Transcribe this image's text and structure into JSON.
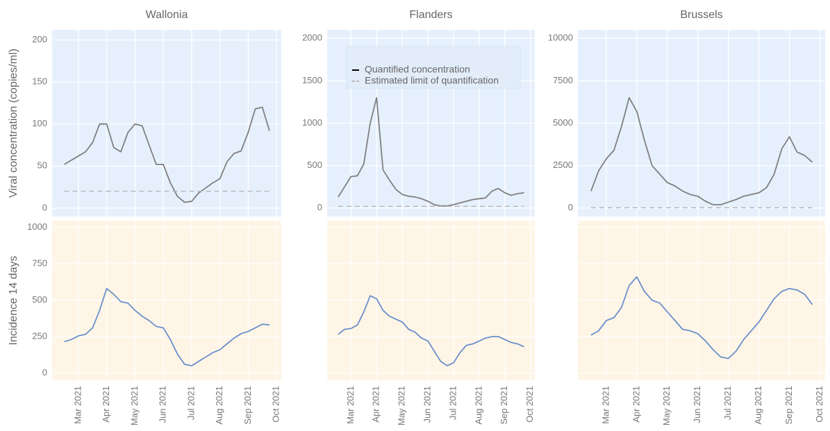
{
  "chart_data": [
    {
      "type": "line",
      "title": "Wallonia",
      "ylabel": "Viral concentration (copies/ml)",
      "background": "#e6f0fd",
      "xlim": [
        2.07,
        10.17
      ],
      "xticks": [
        3,
        4,
        5,
        6,
        7,
        8,
        9,
        10
      ],
      "show_xtick_labels": false,
      "ylim": [
        -10,
        212
      ],
      "yticks": [
        0,
        50,
        100,
        150,
        200
      ],
      "series": [
        {
          "color": "#7f7f7f",
          "x": [
            2.5,
            2.75,
            3.0,
            3.25,
            3.5,
            3.75,
            4.0,
            4.25,
            4.5,
            4.75,
            5.0,
            5.25,
            5.5,
            5.75,
            6.0,
            6.25,
            6.5,
            6.75,
            7.0,
            7.25,
            7.5,
            7.75,
            8.0,
            8.25,
            8.5,
            8.75,
            9.0,
            9.25,
            9.5,
            9.75
          ],
          "values": [
            52,
            57,
            62,
            67,
            78,
            100,
            100,
            72,
            67,
            90,
            100,
            98,
            75,
            52,
            52,
            30,
            14,
            7,
            8,
            18,
            24,
            30,
            35,
            55,
            65,
            68,
            90,
            118,
            120,
            92
          ]
        },
        {
          "color": "#b5b5b5",
          "dash": true,
          "x": [
            2.5,
            9.75
          ],
          "values": [
            20,
            20
          ]
        }
      ]
    },
    {
      "type": "line",
      "title": "Flanders",
      "background": "#e6f0fd",
      "legend": true,
      "xlim": [
        2.07,
        10.17
      ],
      "xticks": [
        3,
        4,
        5,
        6,
        7,
        8,
        9,
        10
      ],
      "show_xtick_labels": false,
      "ylim": [
        -100,
        2100
      ],
      "yticks": [
        0,
        500,
        1000,
        1500,
        2000
      ],
      "series": [
        {
          "name": "Quantified concentration",
          "color": "#7f7f7f",
          "x": [
            2.5,
            2.75,
            3.0,
            3.25,
            3.5,
            3.75,
            4.0,
            4.25,
            4.5,
            4.75,
            5.0,
            5.25,
            5.5,
            5.75,
            6.0,
            6.25,
            6.5,
            6.75,
            7.0,
            7.25,
            7.5,
            7.75,
            8.0,
            8.25,
            8.5,
            8.75,
            9.0,
            9.25,
            9.5,
            9.75
          ],
          "values": [
            130,
            250,
            370,
            380,
            520,
            1000,
            1300,
            450,
            330,
            220,
            160,
            140,
            130,
            110,
            80,
            40,
            25,
            25,
            40,
            60,
            80,
            100,
            110,
            120,
            200,
            230,
            180,
            150,
            170,
            180
          ]
        },
        {
          "name": "Estimated limit of quantification",
          "color": "#b5b5b5",
          "dash": true,
          "x": [
            2.5,
            9.75
          ],
          "values": [
            20,
            20
          ]
        }
      ]
    },
    {
      "type": "line",
      "title": "Brussels",
      "background": "#e6f0fd",
      "xlim": [
        2.07,
        10.17
      ],
      "xticks": [
        3,
        4,
        5,
        6,
        7,
        8,
        9,
        10
      ],
      "show_xtick_labels": false,
      "ylim": [
        -500,
        10500
      ],
      "yticks": [
        0,
        2500,
        5000,
        7500,
        10000
      ],
      "series": [
        {
          "color": "#7f7f7f",
          "x": [
            2.5,
            2.75,
            3.0,
            3.25,
            3.5,
            3.75,
            4.0,
            4.25,
            4.5,
            4.75,
            5.0,
            5.25,
            5.5,
            5.75,
            6.0,
            6.25,
            6.5,
            6.75,
            7.0,
            7.25,
            7.5,
            7.75,
            8.0,
            8.25,
            8.5,
            8.75,
            9.0,
            9.25,
            9.5,
            9.75
          ],
          "values": [
            1000,
            2200,
            2900,
            3400,
            4800,
            6500,
            5700,
            4000,
            2500,
            2000,
            1500,
            1300,
            1000,
            800,
            700,
            400,
            200,
            200,
            350,
            500,
            700,
            800,
            900,
            1200,
            2000,
            3500,
            4200,
            3300,
            3100,
            2700
          ]
        },
        {
          "color": "#b5b5b5",
          "dash": true,
          "x": [
            2.5,
            9.75
          ],
          "values": [
            20,
            20
          ]
        }
      ]
    },
    {
      "type": "line",
      "ylabel": "Incidence 14 days",
      "background": "#fef5e6",
      "xlim": [
        2.07,
        10.17
      ],
      "xticks": [
        {
          "value": 3,
          "label": "Mar 2021"
        },
        {
          "value": 4,
          "label": "Apr 2021"
        },
        {
          "value": 5,
          "label": "May 2021"
        },
        {
          "value": 6,
          "label": "Jun 2021"
        },
        {
          "value": 7,
          "label": "Jul 2021"
        },
        {
          "value": 8,
          "label": "Aug 2021"
        },
        {
          "value": 9,
          "label": "Sep 2021"
        },
        {
          "value": 10,
          "label": "Oct 2021"
        }
      ],
      "ylim": [
        -50,
        1045
      ],
      "yticks": [
        0,
        250,
        500,
        750,
        1000
      ],
      "series": [
        {
          "color": "#6b8fcb",
          "x": [
            2.5,
            2.75,
            3.0,
            3.25,
            3.5,
            3.75,
            4.0,
            4.25,
            4.5,
            4.75,
            5.0,
            5.25,
            5.5,
            5.75,
            6.0,
            6.25,
            6.5,
            6.75,
            7.0,
            7.25,
            7.5,
            7.75,
            8.0,
            8.25,
            8.5,
            8.75,
            9.0,
            9.25,
            9.5,
            9.75
          ],
          "values": [
            215,
            230,
            255,
            265,
            310,
            430,
            580,
            540,
            490,
            480,
            430,
            390,
            360,
            320,
            310,
            230,
            130,
            60,
            50,
            80,
            110,
            140,
            160,
            200,
            240,
            270,
            285,
            310,
            335,
            330
          ]
        }
      ]
    },
    {
      "type": "line",
      "background": "#fef5e6",
      "xlim": [
        2.07,
        10.17
      ],
      "xticks": [
        {
          "value": 3,
          "label": "Mar 2021"
        },
        {
          "value": 4,
          "label": "Apr 2021"
        },
        {
          "value": 5,
          "label": "May 2021"
        },
        {
          "value": 6,
          "label": "Jun 2021"
        },
        {
          "value": 7,
          "label": "Jul 2021"
        },
        {
          "value": 8,
          "label": "Aug 2021"
        },
        {
          "value": 9,
          "label": "Sep 2021"
        },
        {
          "value": 10,
          "label": "Oct 2021"
        }
      ],
      "ylim": [
        -50,
        1045
      ],
      "yticks": [
        0,
        250,
        500,
        750,
        1000
      ],
      "show_ytick_labels": false,
      "series": [
        {
          "color": "#6b8fcb",
          "x": [
            2.5,
            2.75,
            3.0,
            3.25,
            3.5,
            3.75,
            4.0,
            4.25,
            4.5,
            4.75,
            5.0,
            5.25,
            5.5,
            5.75,
            6.0,
            6.25,
            6.5,
            6.75,
            7.0,
            7.25,
            7.5,
            7.75,
            8.0,
            8.25,
            8.5,
            8.75,
            9.0,
            9.25,
            9.5,
            9.75
          ],
          "values": [
            265,
            300,
            305,
            330,
            420,
            530,
            510,
            430,
            390,
            370,
            350,
            300,
            280,
            240,
            220,
            150,
            80,
            50,
            70,
            140,
            190,
            200,
            220,
            240,
            250,
            250,
            230,
            210,
            200,
            180
          ]
        }
      ]
    },
    {
      "type": "line",
      "background": "#fef5e6",
      "xlim": [
        2.07,
        10.17
      ],
      "xticks": [
        {
          "value": 3,
          "label": "Mar 2021"
        },
        {
          "value": 4,
          "label": "Apr 2021"
        },
        {
          "value": 5,
          "label": "May 2021"
        },
        {
          "value": 6,
          "label": "Jun 2021"
        },
        {
          "value": 7,
          "label": "Jul 2021"
        },
        {
          "value": 8,
          "label": "Aug 2021"
        },
        {
          "value": 9,
          "label": "Sep 2021"
        },
        {
          "value": 10,
          "label": "Oct 2021"
        }
      ],
      "ylim": [
        -50,
        1045
      ],
      "yticks": [
        0,
        250,
        500,
        750,
        1000
      ],
      "show_ytick_labels": false,
      "series": [
        {
          "color": "#6b8fcb",
          "x": [
            2.5,
            2.75,
            3.0,
            3.25,
            3.5,
            3.75,
            4.0,
            4.25,
            4.5,
            4.75,
            5.0,
            5.25,
            5.5,
            5.75,
            6.0,
            6.25,
            6.5,
            6.75,
            7.0,
            7.25,
            7.5,
            7.75,
            8.0,
            8.25,
            8.5,
            8.75,
            9.0,
            9.25,
            9.5,
            9.75
          ],
          "values": [
            260,
            290,
            360,
            380,
            450,
            600,
            660,
            560,
            500,
            480,
            420,
            360,
            300,
            290,
            270,
            220,
            160,
            110,
            100,
            150,
            230,
            290,
            350,
            430,
            510,
            560,
            580,
            570,
            540,
            470
          ]
        }
      ]
    }
  ]
}
